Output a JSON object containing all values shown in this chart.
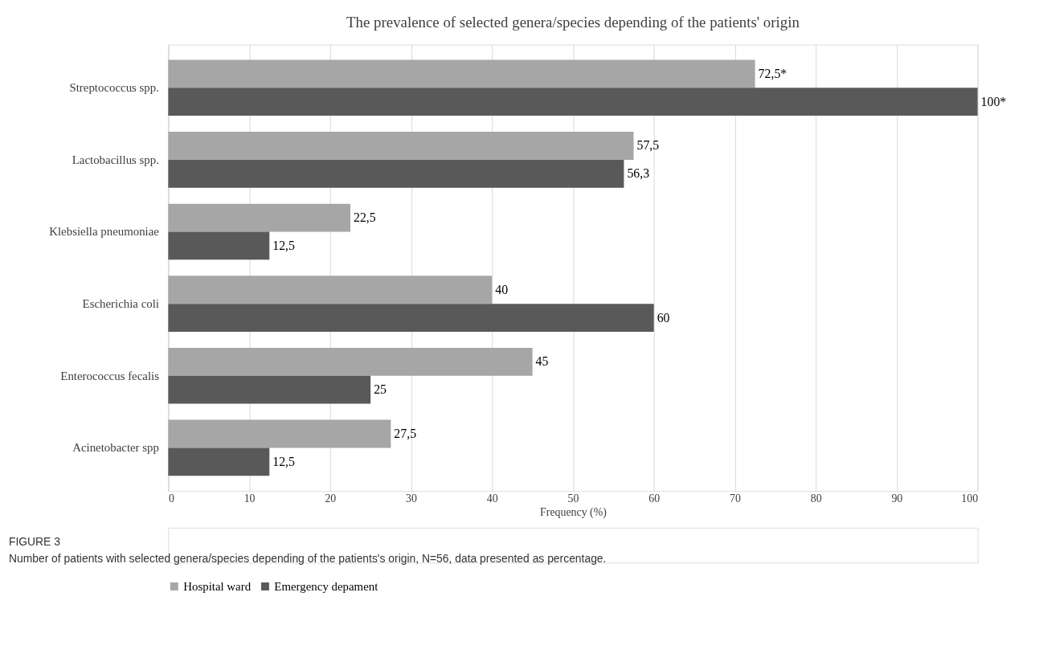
{
  "chart_data": {
    "type": "bar",
    "orientation": "horizontal",
    "title": "The prevalence of selected genera/species depending of the patients' origin",
    "categories": [
      "Streptococcus spp.",
      "Lactobacillus spp.",
      "Klebsiella pneumoniae",
      "Escherichia coli",
      "Enterococcus fecalis",
      "Acinetobacter spp"
    ],
    "series": [
      {
        "name": "Hospital ward",
        "color": "#a6a6a6",
        "values": [
          72.5,
          57.5,
          22.5,
          40,
          45,
          27.5
        ],
        "value_labels": [
          "72,5*",
          "57,5",
          "22,5",
          "40",
          "45",
          "27,5"
        ]
      },
      {
        "name": "Emergency depament",
        "color": "#595959",
        "values": [
          100,
          56.3,
          12.5,
          60,
          25,
          12.5
        ],
        "value_labels": [
          "100*",
          "56,3",
          "12,5",
          "60",
          "25",
          "12,5"
        ]
      }
    ],
    "xlabel": "Frequency (%)",
    "xlim": [
      0,
      100
    ],
    "xticks": [
      0,
      10,
      20,
      30,
      40,
      50,
      60,
      70,
      80,
      90,
      100
    ],
    "grid": "x",
    "legend": "bottom",
    "annotations": [
      "FIGURE 3",
      "Number of patients with selected genera/species depending of the patients's origin, N=56, data presented as percentage."
    ]
  }
}
